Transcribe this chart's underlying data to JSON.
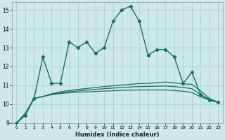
{
  "xlabel": "Humidex (Indice chaleur)",
  "background_color": "#cce8e8",
  "grid_color": "#aad0d0",
  "line_color": "#1a7060",
  "xlim": [
    -0.5,
    23.5
  ],
  "ylim": [
    9,
    15.4
  ],
  "xticks": [
    0,
    1,
    2,
    3,
    4,
    5,
    6,
    7,
    8,
    9,
    10,
    11,
    12,
    13,
    14,
    15,
    16,
    17,
    18,
    19,
    20,
    21,
    22,
    23
  ],
  "yticks": [
    9,
    10,
    11,
    12,
    13,
    14,
    15
  ],
  "series1_x": [
    0,
    1,
    2,
    3,
    4,
    5,
    6,
    7,
    8,
    9,
    10,
    11,
    12,
    13,
    14,
    15,
    16,
    17,
    18,
    19,
    20,
    21,
    22,
    23
  ],
  "series1_y": [
    9.0,
    9.4,
    10.3,
    12.5,
    11.1,
    11.1,
    13.3,
    13.0,
    13.3,
    12.7,
    13.0,
    14.4,
    15.0,
    15.2,
    14.4,
    12.6,
    12.9,
    12.9,
    12.5,
    11.1,
    11.7,
    10.5,
    10.2,
    10.1
  ],
  "series2_x": [
    0,
    1,
    2,
    3,
    4,
    5,
    6,
    7,
    8,
    9,
    10,
    11,
    12,
    13,
    14,
    15,
    16,
    17,
    18,
    19,
    20,
    21,
    22,
    23
  ],
  "series2_y": [
    9.0,
    9.5,
    10.3,
    10.4,
    10.55,
    10.65,
    10.72,
    10.78,
    10.83,
    10.88,
    10.93,
    10.97,
    11.01,
    11.05,
    11.09,
    11.1,
    11.14,
    11.17,
    11.13,
    11.08,
    11.05,
    10.7,
    10.3,
    10.1
  ],
  "series3_x": [
    0,
    1,
    2,
    3,
    4,
    5,
    6,
    7,
    8,
    9,
    10,
    11,
    12,
    13,
    14,
    15,
    16,
    17,
    18,
    19,
    20,
    21,
    22,
    23
  ],
  "series3_y": [
    9.0,
    9.5,
    10.3,
    10.4,
    10.52,
    10.6,
    10.66,
    10.7,
    10.74,
    10.78,
    10.82,
    10.85,
    10.88,
    10.91,
    10.93,
    10.94,
    10.95,
    10.96,
    10.93,
    10.88,
    10.82,
    10.5,
    10.25,
    10.1
  ],
  "series4_x": [
    0,
    1,
    2,
    3,
    4,
    5,
    6,
    7,
    8,
    9,
    10,
    11,
    12,
    13,
    14,
    15,
    16,
    17,
    18,
    19,
    20,
    21,
    22,
    23
  ],
  "series4_y": [
    9.0,
    9.5,
    10.3,
    10.4,
    10.5,
    10.56,
    10.6,
    10.63,
    10.65,
    10.67,
    10.69,
    10.71,
    10.73,
    10.74,
    10.75,
    10.75,
    10.75,
    10.75,
    10.72,
    10.68,
    10.62,
    10.38,
    10.22,
    10.1
  ]
}
